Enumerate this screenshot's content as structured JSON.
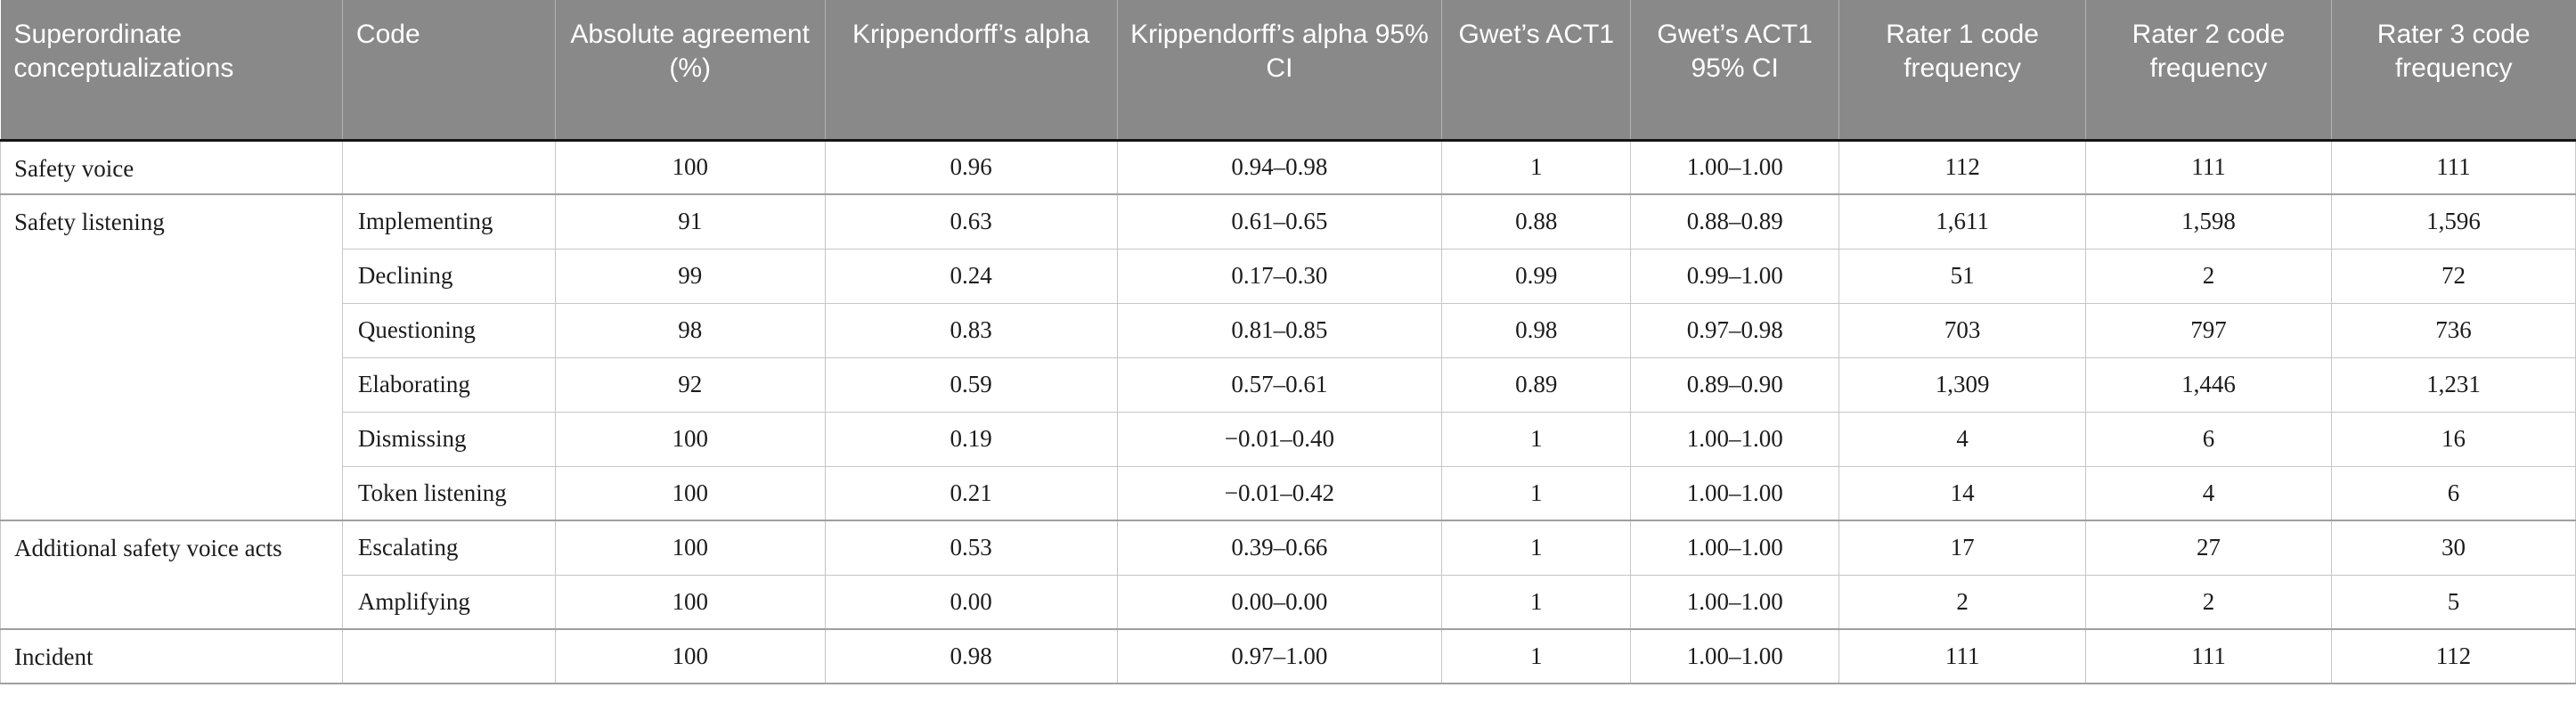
{
  "table": {
    "columns": [
      {
        "key": "superordinate-conceptualizations",
        "label": "Superordinate conceptualizations",
        "align": "left",
        "width_pct": 13.28
      },
      {
        "key": "code",
        "label": "Code",
        "align": "left",
        "width_pct": 8.26
      },
      {
        "key": "absolute-agreement",
        "label": "Absolute agreement (%)",
        "align": "center",
        "width_pct": 10.48
      },
      {
        "key": "krippendorff-alpha",
        "label": "Krippendorff’s alpha",
        "align": "center",
        "width_pct": 11.34
      },
      {
        "key": "krippendorff-alpha-95ci",
        "label": "Krippendorff’s alpha 95% CI",
        "align": "center",
        "width_pct": 12.62
      },
      {
        "key": "gwets-act1",
        "label": "Gwet’s ACT1",
        "align": "center",
        "width_pct": 7.33
      },
      {
        "key": "gwets-act1-95ci",
        "label": "Gwet’s ACT1 95% CI",
        "align": "center",
        "width_pct": 8.09
      },
      {
        "key": "rater1-code-frequency",
        "label": "Rater 1 code frequency",
        "align": "center",
        "width_pct": 9.58
      },
      {
        "key": "rater2-code-frequency",
        "label": "Rater 2 code frequency",
        "align": "center",
        "width_pct": 9.54
      },
      {
        "key": "rater3-code-frequency",
        "label": "Rater 3 code frequency",
        "align": "center",
        "width_pct": 9.48
      }
    ],
    "groups": [
      {
        "label": "Safety voice",
        "rows": [
          {
            "values": [
              "",
              "100",
              "0.96",
              "0.94–0.98",
              "1",
              "1.00–1.00",
              "112",
              "111",
              "111"
            ]
          }
        ]
      },
      {
        "label": "Safety listening",
        "rows": [
          {
            "values": [
              "Implementing",
              "91",
              "0.63",
              "0.61–0.65",
              "0.88",
              "0.88–0.89",
              "1,611",
              "1,598",
              "1,596"
            ]
          },
          {
            "values": [
              "Declining",
              "99",
              "0.24",
              "0.17–0.30",
              "0.99",
              "0.99–1.00",
              "51",
              "2",
              "72"
            ]
          },
          {
            "values": [
              "Questioning",
              "98",
              "0.83",
              "0.81–0.85",
              "0.98",
              "0.97–0.98",
              "703",
              "797",
              "736"
            ]
          },
          {
            "values": [
              "Elaborating",
              "92",
              "0.59",
              "0.57–0.61",
              "0.89",
              "0.89–0.90",
              "1,309",
              "1,446",
              "1,231"
            ]
          },
          {
            "values": [
              "Dismissing",
              "100",
              "0.19",
              "−0.01–0.40",
              "1",
              "1.00–1.00",
              "4",
              "6",
              "16"
            ]
          },
          {
            "values": [
              "Token listening",
              "100",
              "0.21",
              "−0.01–0.42",
              "1",
              "1.00–1.00",
              "14",
              "4",
              "6"
            ]
          }
        ]
      },
      {
        "label": "Additional safety voice acts",
        "rows": [
          {
            "values": [
              "Escalating",
              "100",
              "0.53",
              "0.39–0.66",
              "1",
              "1.00–1.00",
              "17",
              "27",
              "30"
            ]
          },
          {
            "values": [
              "Amplifying",
              "100",
              "0.00",
              "0.00–0.00",
              "1",
              "1.00–1.00",
              "2",
              "2",
              "5"
            ]
          }
        ]
      },
      {
        "label": "Incident",
        "rows": [
          {
            "values": [
              "",
              "100",
              "0.98",
              "0.97–1.00",
              "1",
              "1.00–1.00",
              "111",
              "111",
              "112"
            ]
          }
        ]
      }
    ],
    "colors": {
      "header_bg": "#898989",
      "header_text": "#ffffff",
      "header_underline": "#161616",
      "row_line": "#c6c6c6",
      "group_line": "#a0a0a0",
      "body_text": "#1c1c1c"
    }
  }
}
